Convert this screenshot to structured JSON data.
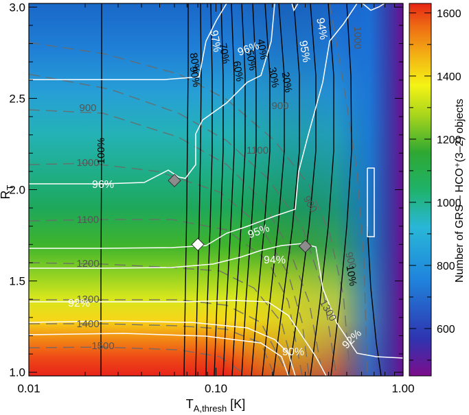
{
  "chart_data": {
    "type": "heatmap",
    "xscale": "log",
    "xlim": [
      0.01,
      1.0
    ],
    "ylim": [
      0.98,
      3.02
    ],
    "xlabel_main": "T",
    "xlabel_sub": "A,thresh",
    "xlabel_unit": "[K]",
    "ylabel_main": "R",
    "ylabel_sub": "T",
    "x_ticks": [
      0.01,
      0.1,
      1.0
    ],
    "x_tick_labels": [
      "0.01",
      "0.10",
      "1.00"
    ],
    "y_ticks": [
      1.0,
      1.5,
      2.0,
      2.5,
      3.0
    ],
    "y_tick_labels": [
      "1.0",
      "1.5",
      "2.0",
      "2.5",
      "3.0"
    ],
    "colorbar": {
      "label": "Number of GRS – HCO⁺(3–2) objects",
      "range": [
        450,
        1630
      ],
      "ticks": [
        600,
        800,
        1000,
        1200,
        1400,
        1600
      ],
      "tick_labels": [
        "600",
        "800",
        "1000",
        "1200",
        "1400",
        "1600"
      ],
      "colormap": [
        "#7d0d8c",
        "#2f34b0",
        "#1f84dc",
        "#29b7d8",
        "#1fb26a",
        "#2ea832",
        "#a8d51c",
        "#f4f315",
        "#f3b214",
        "#ee6a13",
        "#e62515"
      ]
    },
    "count_contours": {
      "style": "gray-dashed",
      "labels": [
        "900",
        "1000",
        "1100",
        "1200",
        "1300",
        "1400",
        "1500",
        "1000",
        "900",
        "900",
        "1300",
        "1100",
        "900"
      ]
    },
    "completeness_contours": {
      "style": "black-solid",
      "labels": [
        "100%",
        "90%",
        "80%",
        "70%",
        "60%",
        "50%",
        "40%",
        "30%",
        "20%",
        "10%"
      ]
    },
    "reliability_contours": {
      "style": "white-solid",
      "labels": [
        "97%",
        "96%",
        "96%",
        "95%",
        "95%",
        "94%",
        "94%",
        "92%",
        "92%",
        "90%"
      ]
    },
    "markers": [
      {
        "x": 0.06,
        "y": 2.05,
        "color": "gray",
        "shape": "diamond"
      },
      {
        "x": 0.08,
        "y": 1.7,
        "color": "white",
        "shape": "diamond"
      },
      {
        "x": 0.3,
        "y": 1.69,
        "color": "gray",
        "shape": "diamond"
      }
    ]
  }
}
